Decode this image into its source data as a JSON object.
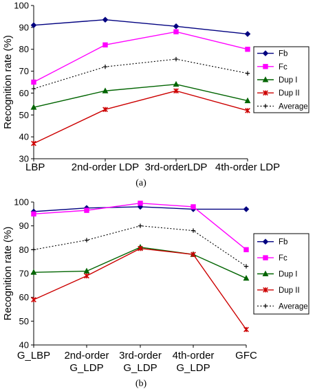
{
  "chart_data": [
    {
      "type": "line",
      "caption": "(a)",
      "ylabel": "Recognition rate (%)",
      "ylim": [
        30,
        100
      ],
      "yticks": [
        30,
        40,
        50,
        60,
        70,
        80,
        90,
        100
      ],
      "categories": [
        "LBP",
        "2nd-order LDP",
        "3rd-orderLDP",
        "4th-order LDP"
      ],
      "legend_position": "right",
      "series": [
        {
          "name": "Fb",
          "values": [
            91,
            93.5,
            90.5,
            87
          ],
          "color": "#000080",
          "marker": "diamond",
          "dash": "solid"
        },
        {
          "name": "Fc",
          "values": [
            65,
            82,
            88,
            80
          ],
          "color": "#ff00ff",
          "marker": "square",
          "dash": "solid"
        },
        {
          "name": "Dup I",
          "values": [
            53.5,
            61,
            64,
            56.5
          ],
          "color": "#006400",
          "marker": "triangle",
          "dash": "solid"
        },
        {
          "name": "Dup II",
          "values": [
            37,
            52.5,
            61,
            52
          ],
          "color": "#cc0000",
          "marker": "x",
          "dash": "solid"
        },
        {
          "name": "Average",
          "values": [
            62,
            72,
            75.5,
            69
          ],
          "color": "#000000",
          "marker": "plus",
          "dash": "dotted"
        }
      ]
    },
    {
      "type": "line",
      "caption": "(b)",
      "ylabel": "Recognition rate (%)",
      "ylim": [
        40,
        100
      ],
      "yticks": [
        40,
        50,
        60,
        70,
        80,
        90,
        100
      ],
      "categories": [
        [
          "G_LBP"
        ],
        [
          "2nd-order",
          "G_LDP"
        ],
        [
          "3rd-order",
          "G_LDP"
        ],
        [
          "4th-order",
          "G_LDP"
        ],
        [
          "GFC"
        ]
      ],
      "legend_position": "right",
      "series": [
        {
          "name": "Fb",
          "values": [
            96,
            97.5,
            98,
            97,
            97
          ],
          "color": "#000080",
          "marker": "diamond",
          "dash": "solid"
        },
        {
          "name": "Fc",
          "values": [
            95,
            96.5,
            99.5,
            98,
            80
          ],
          "color": "#ff00ff",
          "marker": "square",
          "dash": "solid"
        },
        {
          "name": "Dup I",
          "values": [
            70.5,
            71,
            81,
            78,
            68
          ],
          "color": "#006400",
          "marker": "triangle",
          "dash": "solid"
        },
        {
          "name": "Dup II",
          "values": [
            59,
            69,
            80.5,
            78,
            46.5
          ],
          "color": "#cc0000",
          "marker": "x",
          "dash": "solid"
        },
        {
          "name": "Average",
          "values": [
            80,
            84,
            90,
            88,
            73
          ],
          "color": "#000000",
          "marker": "plus",
          "dash": "dotted"
        }
      ]
    }
  ]
}
